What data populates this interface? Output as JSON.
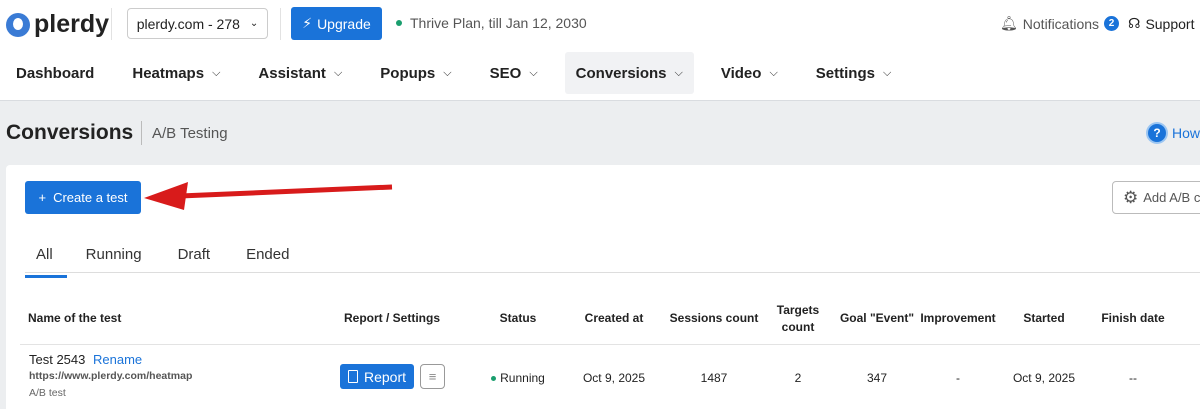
{
  "header": {
    "logo": "plerdy",
    "site": "plerdy.com - 278",
    "upgrade": "Upgrade",
    "plan": "Thrive Plan, till Jan 12, 2030",
    "notifications": "Notifications",
    "notifications_count": "2",
    "support": "Support"
  },
  "nav": [
    {
      "label": "Dashboard",
      "chevron": false
    },
    {
      "label": "Heatmaps",
      "chevron": true
    },
    {
      "label": "Assistant",
      "chevron": true
    },
    {
      "label": "Popups",
      "chevron": true
    },
    {
      "label": "SEO",
      "chevron": true
    },
    {
      "label": "Conversions",
      "chevron": true,
      "active": true
    },
    {
      "label": "Video",
      "chevron": true
    },
    {
      "label": "Settings",
      "chevron": true
    }
  ],
  "page": {
    "title": "Conversions",
    "subtitle": "A/B Testing",
    "how": "How"
  },
  "toolbar": {
    "create": "Create a test",
    "add_ab": "Add A/B c"
  },
  "tabs": [
    "All",
    "Running",
    "Draft",
    "Ended"
  ],
  "table": {
    "headers": [
      "Name of the test",
      "Report / Settings",
      "Status",
      "Created at",
      "Sessions count",
      "Targets count",
      "Goal \"Event\"",
      "Improvement",
      "Started",
      "Finish date"
    ],
    "rows": [
      {
        "name": "Test 2543",
        "rename": "Rename",
        "url": "https://www.plerdy.com/heatmap",
        "type": "A/B test",
        "report": "Report",
        "status": "Running",
        "created": "Oct 9, 2025",
        "sessions": "1487",
        "targets": "2",
        "goal": "347",
        "improvement": "-",
        "started": "Oct 9, 2025",
        "finish": "--"
      }
    ]
  },
  "colors": {
    "accent": "#1a73d9",
    "status_running": "#1a9e6e",
    "annotation_arrow": "#d81b1b"
  }
}
